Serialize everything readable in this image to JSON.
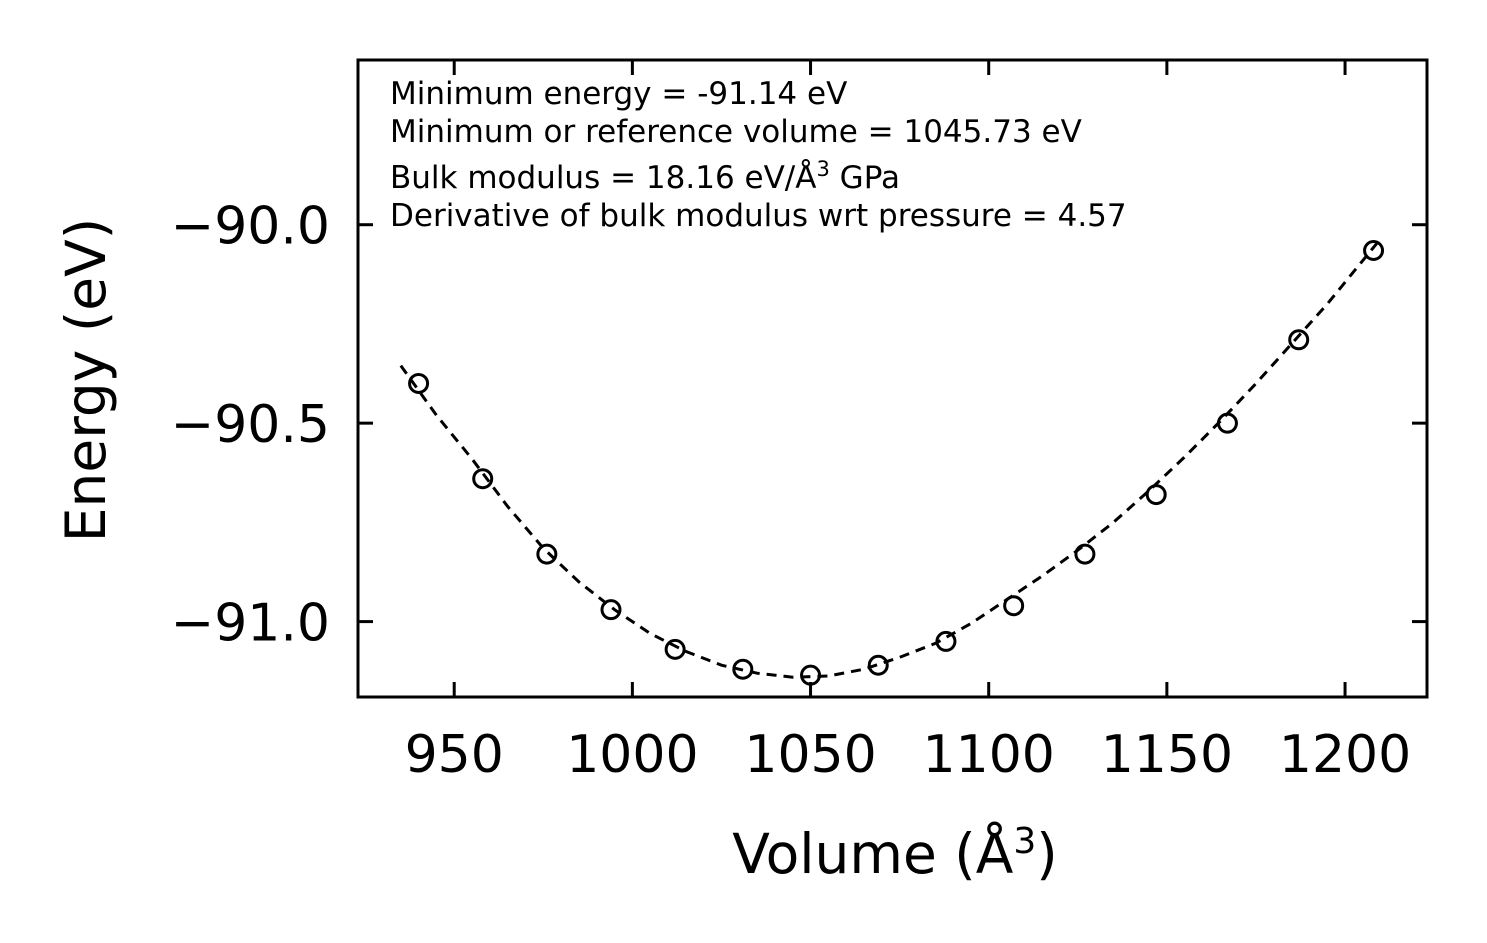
{
  "chart_data": {
    "type": "scatter",
    "title": "",
    "xlabel": "Volume (Å",
    "xlabel_sup": "3",
    "xlabel_close": ")",
    "ylabel": "Energy (eV)",
    "xlim": [
      923,
      1223
    ],
    "ylim": [
      -91.19,
      -89.585
    ],
    "xticks": [
      950,
      1000,
      1050,
      1100,
      1150,
      1200
    ],
    "xtick_labels": [
      "950",
      "1000",
      "1050",
      "1100",
      "1150",
      "1200"
    ],
    "yticks": [
      -91.0,
      -90.5,
      -90.0
    ],
    "ytick_labels": [
      "−91.0",
      "−90.5",
      "−90.0"
    ],
    "grid": false,
    "series": [
      {
        "name": "data",
        "marker": "open-circle",
        "x": [
          940,
          958,
          976,
          994,
          1012,
          1031,
          1050,
          1069,
          1088,
          1107,
          1127,
          1147,
          1167,
          1187,
          1208
        ],
        "y": [
          -90.4,
          -90.64,
          -90.83,
          -90.97,
          -91.07,
          -91.12,
          -91.135,
          -91.11,
          -91.05,
          -90.96,
          -90.83,
          -90.68,
          -90.5,
          -90.29,
          -90.065
        ]
      },
      {
        "name": "fit",
        "style": "dashed-line",
        "x": [
          935,
          945,
          955,
          965,
          975,
          985,
          995,
          1005,
          1015,
          1025,
          1035,
          1045,
          1055,
          1065,
          1075,
          1085,
          1095,
          1105,
          1115,
          1125,
          1135,
          1145,
          1155,
          1165,
          1175,
          1185,
          1195,
          1205,
          1210
        ],
        "y": [
          -90.355,
          -90.48,
          -90.59,
          -90.71,
          -90.815,
          -90.9,
          -90.97,
          -91.03,
          -91.075,
          -91.11,
          -91.13,
          -91.14,
          -91.137,
          -91.12,
          -91.09,
          -91.055,
          -91.005,
          -90.945,
          -90.885,
          -90.82,
          -90.75,
          -90.67,
          -90.585,
          -90.495,
          -90.4,
          -90.3,
          -90.2,
          -90.09,
          -90.035
        ]
      }
    ],
    "annotations": {
      "line1": "Minimum energy = -91.14 eV",
      "line2": "Minimum or reference volume = 1045.73 eV",
      "line3_pre": "Bulk modulus = 18.16 eV/Å",
      "line3_sup": "3",
      "line3_post": " GPa",
      "line4": "Derivative of bulk modulus wrt pressure = 4.57"
    }
  }
}
